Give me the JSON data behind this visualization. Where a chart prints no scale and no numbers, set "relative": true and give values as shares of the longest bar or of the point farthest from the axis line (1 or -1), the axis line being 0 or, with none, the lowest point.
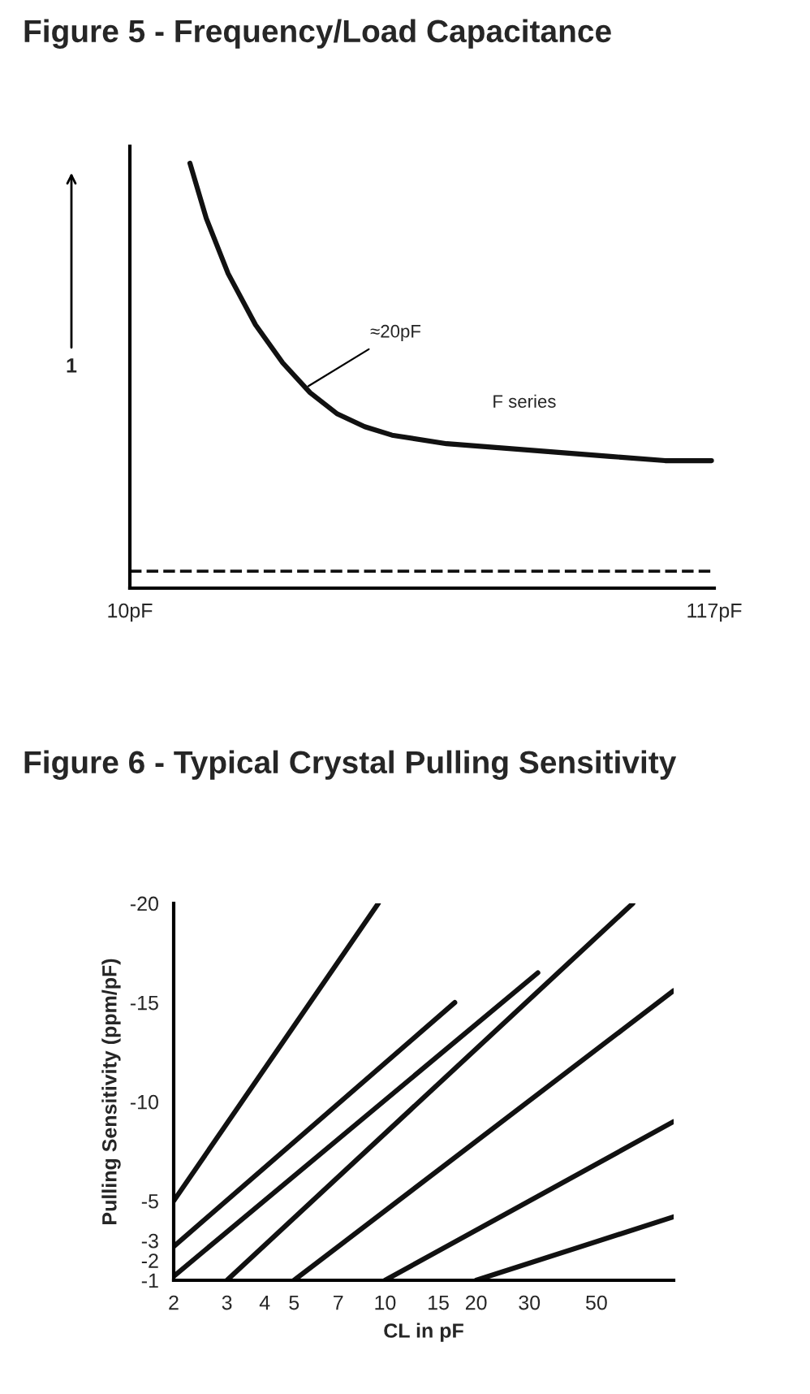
{
  "chart_data": [
    {
      "type": "line",
      "title": "Figure 5 - Frequency/Load Capacitance",
      "relative": true,
      "x": [
        21,
        24,
        28,
        33,
        38,
        43,
        48,
        53,
        58,
        68,
        78,
        88,
        98,
        108,
        116.5
      ],
      "series": [
        {
          "color": "#111111",
          "values": [
            1,
            0.87,
            0.74,
            0.62,
            0.53,
            0.46,
            0.41,
            0.38,
            0.36,
            0.34,
            0.33,
            0.32,
            0.31,
            0.3,
            0.3
          ]
        }
      ],
      "xlim": [
        10,
        117
      ],
      "xticks": [
        {
          "value": 10,
          "label": "10pF"
        },
        {
          "value": 117,
          "label": "117pF"
        }
      ],
      "ref_lines": [
        {
          "axis": "y",
          "value": 0.04,
          "line_style": "dashed",
          "color": "#111111"
        }
      ],
      "annotations": [
        "1",
        {
          "text": "≈20pF",
          "x": 42,
          "y": 0.47
        },
        "F series"
      ],
      "grid": false,
      "legend": false,
      "marker": "none",
      "line_style": "solid"
    },
    {
      "type": "line",
      "title": "Figure 6 - Typical Crystal Pulling Sensitivity",
      "xlabel": "CL in pF",
      "ylabel": "Pulling Sensitivity (ppm/pF)",
      "log": "x",
      "series": [
        {
          "color": "#111111",
          "x": [
            2,
            9.5
          ],
          "values": [
            -5,
            -20
          ]
        },
        {
          "color": "#111111",
          "x": [
            2,
            17
          ],
          "values": [
            -2.7,
            -15
          ]
        },
        {
          "color": "#111111",
          "x": [
            2,
            32
          ],
          "values": [
            -1.2,
            -16.5
          ]
        },
        {
          "color": "#111111",
          "x": [
            3,
            66
          ],
          "values": [
            -1,
            -20
          ]
        },
        {
          "color": "#111111",
          "x": [
            5,
            90
          ],
          "values": [
            -1,
            -15.6
          ]
        },
        {
          "color": "#111111",
          "x": [
            10,
            90
          ],
          "values": [
            -1,
            -9
          ]
        },
        {
          "color": "#111111",
          "x": [
            20,
            90
          ],
          "values": [
            -1,
            -4.2
          ]
        }
      ],
      "xlim": [
        2,
        90
      ],
      "xticks": [
        2,
        3,
        4,
        5,
        7,
        10,
        15,
        20,
        30,
        50
      ],
      "ylim": [
        -1,
        -20
      ],
      "yticks": [
        -1,
        -2,
        -3,
        -5,
        -10,
        -15,
        -20
      ],
      "grid": false,
      "legend": false,
      "marker": "none",
      "line_style": "solid"
    }
  ]
}
